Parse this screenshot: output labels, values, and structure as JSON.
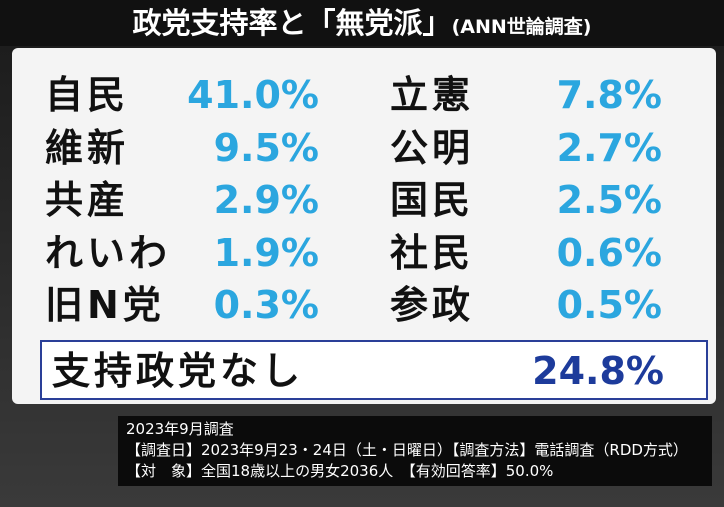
{
  "header": {
    "title": "政党支持率と「無党派」",
    "note": "(ANN世論調査)"
  },
  "parties": [
    [
      {
        "name": "自民",
        "value": "41.0%"
      },
      {
        "name": "立憲",
        "value": "7.8%"
      }
    ],
    [
      {
        "name": "維新",
        "value": "9.5%"
      },
      {
        "name": "公明",
        "value": "2.7%"
      }
    ],
    [
      {
        "name": "共産",
        "value": "2.9%"
      },
      {
        "name": "国民",
        "value": "2.5%"
      }
    ],
    [
      {
        "name": "れいわ",
        "value": "1.9%"
      },
      {
        "name": "社民",
        "value": "0.6%"
      }
    ],
    [
      {
        "name": "旧N党",
        "value": "0.3%"
      },
      {
        "name": "参政",
        "value": "0.5%"
      }
    ]
  ],
  "no_party": {
    "name": "支持政党なし",
    "value": "24.8%"
  },
  "footer": [
    "2023年9月調査",
    "【調査日】2023年9月23・24日（土・日曜日）【調査方法】電話調査（RDD方式）",
    "【対　象】全国18歳以上の男女2036人　【有効回答率】50.0%"
  ]
}
